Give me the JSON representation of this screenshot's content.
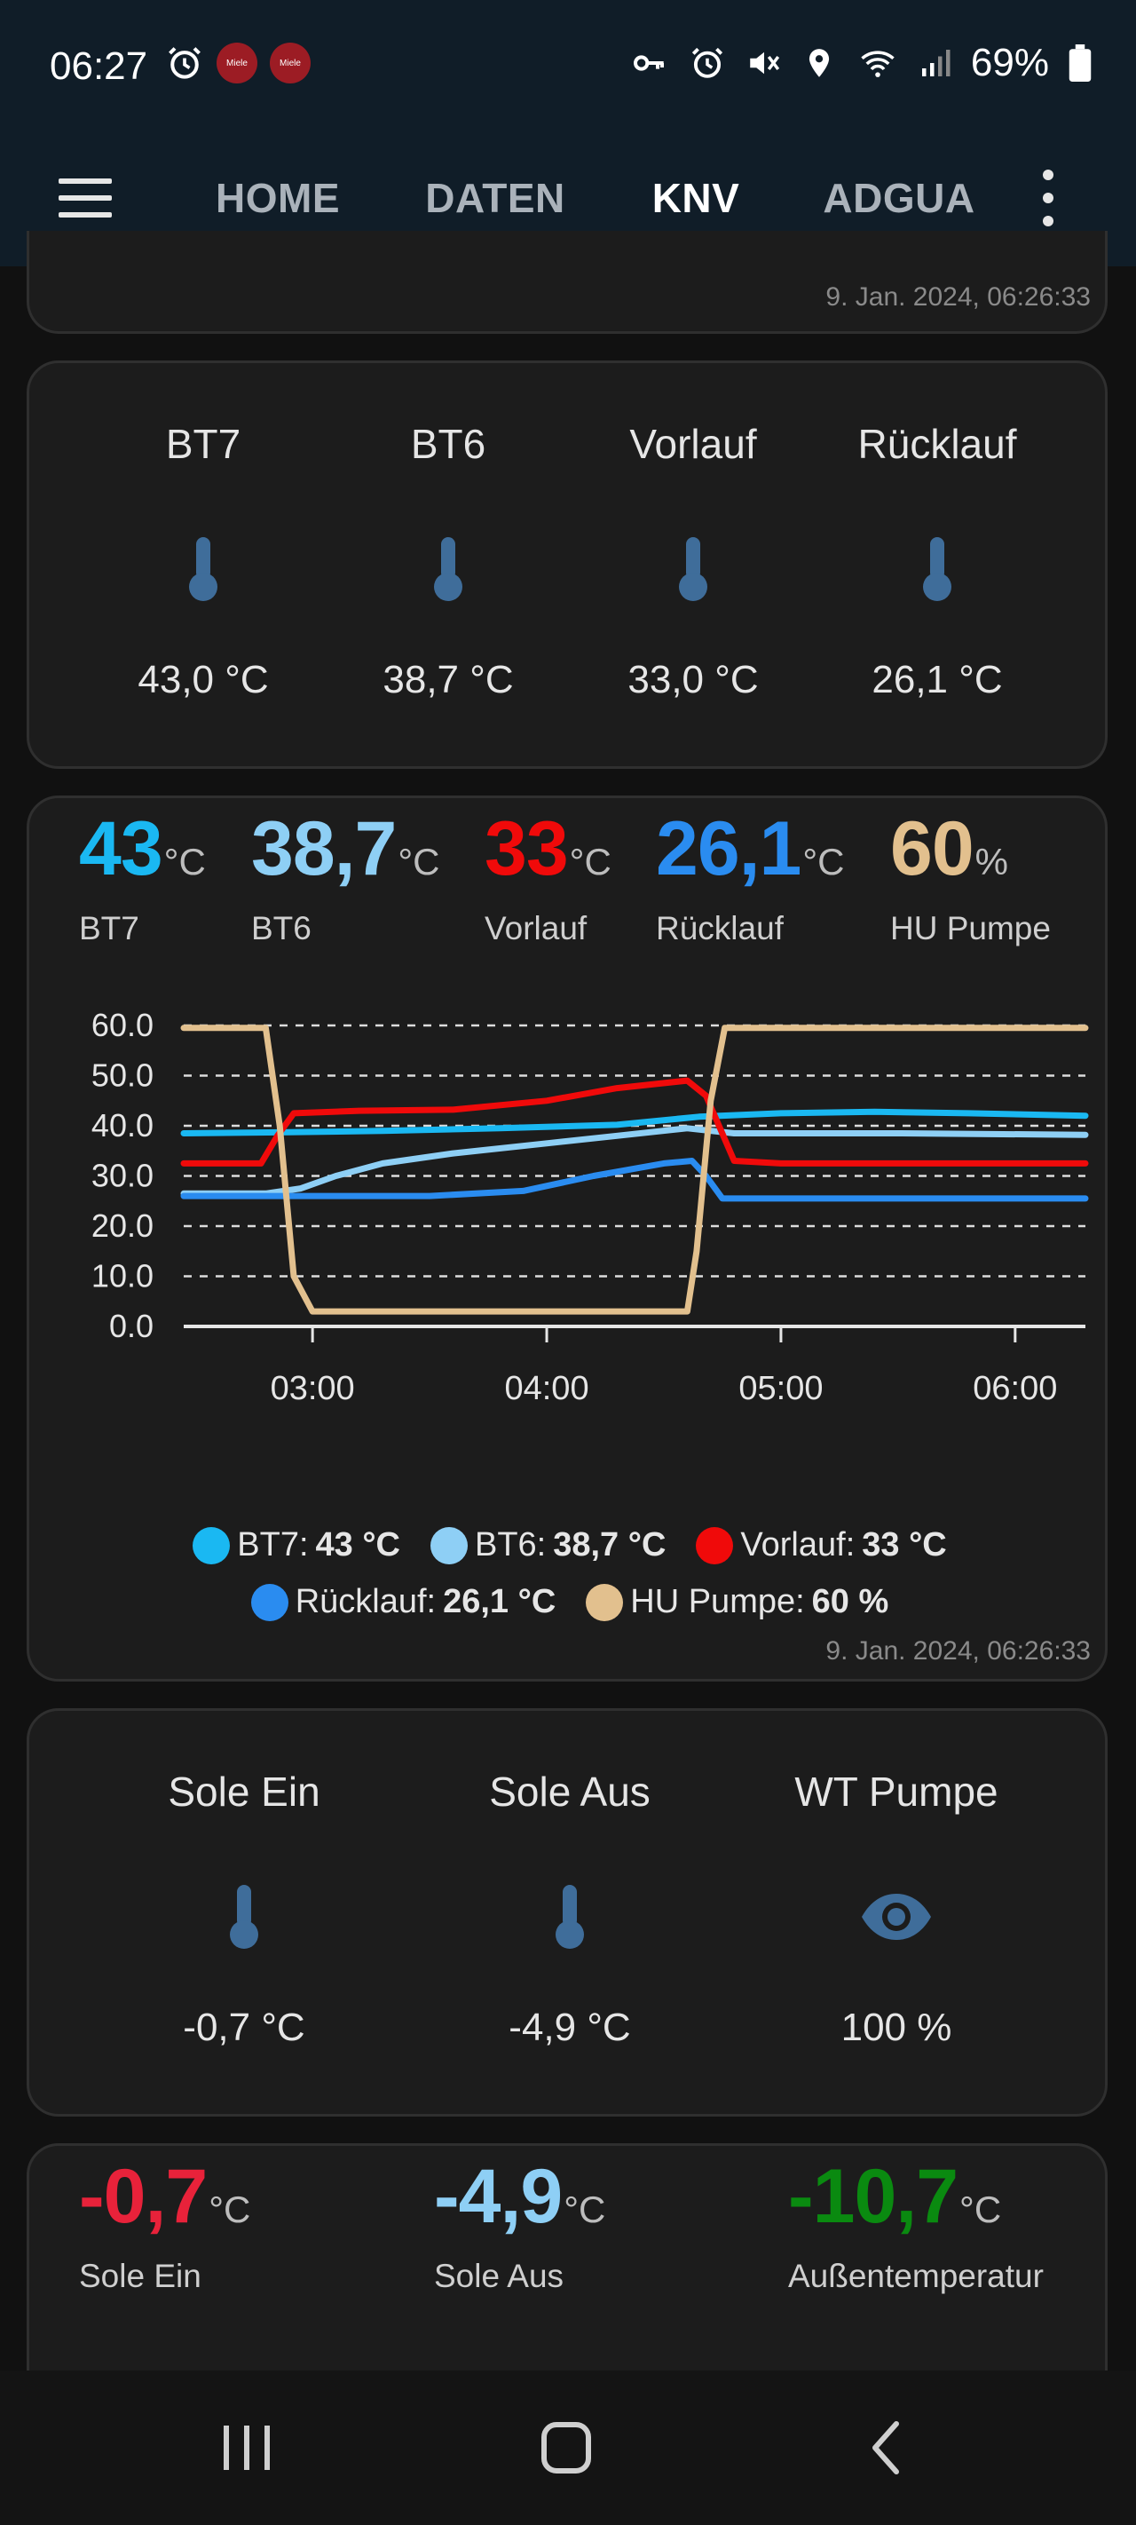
{
  "status_bar": {
    "time": "06:27",
    "battery_percent": "69%",
    "app_badge_text": "Miele",
    "icons": [
      "alarm-icon",
      "miele-app-icon",
      "miele-app-icon",
      "key-icon",
      "alarm-icon",
      "mute-icon",
      "location-icon",
      "wifi-icon",
      "signal-icon",
      "battery-icon"
    ]
  },
  "toolbar": {
    "tabs": [
      {
        "label": "HOME",
        "active": false
      },
      {
        "label": "DATEN",
        "active": false
      },
      {
        "label": "KNV",
        "active": true
      },
      {
        "label": "ADGUA",
        "active": false
      }
    ]
  },
  "top_card": {
    "timestamp": "9. Jan. 2024, 06:26:33"
  },
  "temp_tiles_1": [
    {
      "label": "BT7",
      "icon": "thermometer-icon",
      "value": "43,0 °C"
    },
    {
      "label": "BT6",
      "icon": "thermometer-icon",
      "value": "38,7 °C"
    },
    {
      "label": "Vorlauf",
      "icon": "thermometer-icon",
      "value": "33,0 °C"
    },
    {
      "label": "Rücklauf",
      "icon": "thermometer-icon",
      "value": "26,1 °C"
    }
  ],
  "history_card": {
    "headers": [
      {
        "value": "43",
        "unit": "°C",
        "label": "BT7",
        "color": "#1ab8f2"
      },
      {
        "value": "38,7",
        "unit": "°C",
        "label": "BT6",
        "color": "#8ecff5"
      },
      {
        "value": "33",
        "unit": "°C",
        "label": "Vorlauf",
        "color": "#f00a0a"
      },
      {
        "value": "26,1",
        "unit": "°C",
        "label": "Rücklauf",
        "color": "#2a8cf0"
      },
      {
        "value": "60",
        "unit": "%",
        "label": "HU Pumpe",
        "color": "#e2c08e"
      }
    ],
    "legend": [
      {
        "name": "BT7:",
        "value": "43 °C",
        "color": "#1ab8f2"
      },
      {
        "name": "BT6:",
        "value": "38,7 °C",
        "color": "#8ecff5"
      },
      {
        "name": "Vorlauf:",
        "value": "33 °C",
        "color": "#f00a0a"
      },
      {
        "name": "Rücklauf:",
        "value": "26,1 °C",
        "color": "#2a8cf0"
      },
      {
        "name": "HU Pumpe:",
        "value": "60 %",
        "color": "#e2c08e"
      }
    ],
    "timestamp": "9. Jan. 2024, 06:26:33"
  },
  "chart_data": {
    "type": "line",
    "y_tick_labels": [
      "60.0",
      "50.0",
      "40.0",
      "30.0",
      "20.0",
      "10.0",
      "0.0"
    ],
    "x_tick_labels": [
      "03:00",
      "04:00",
      "05:00",
      "06:00"
    ],
    "x_ticks_hours": [
      3,
      4,
      5,
      6
    ],
    "xlim_hours": [
      2.45,
      6.3
    ],
    "ylim": [
      0,
      60
    ],
    "grid": true,
    "legend_position": "bottom",
    "series": [
      {
        "name": "BT7",
        "color": "#1ab8f2",
        "x": [
          2.45,
          2.9,
          3.3,
          3.8,
          4.3,
          4.65,
          5.0,
          5.4,
          5.8,
          6.3
        ],
        "y": [
          38.5,
          38.7,
          39.0,
          39.5,
          40.2,
          41.8,
          42.5,
          42.8,
          42.5,
          42.0
        ]
      },
      {
        "name": "BT6",
        "color": "#8ecff5",
        "x": [
          2.45,
          2.8,
          2.95,
          3.1,
          3.3,
          3.6,
          4.0,
          4.3,
          4.6,
          4.8,
          5.0,
          5.5,
          6.3
        ],
        "y": [
          26.5,
          26.5,
          27.5,
          30.0,
          32.5,
          34.5,
          36.5,
          38.0,
          39.5,
          38.5,
          38.5,
          38.5,
          38.2
        ]
      },
      {
        "name": "Vorlauf",
        "color": "#f00a0a",
        "x": [
          2.45,
          2.78,
          2.85,
          2.92,
          3.2,
          3.6,
          4.0,
          4.3,
          4.6,
          4.68,
          4.8,
          5.0,
          6.3
        ],
        "y": [
          32.5,
          32.5,
          38.0,
          42.5,
          43.0,
          43.2,
          45.0,
          47.5,
          49.0,
          46.0,
          33.0,
          32.5,
          32.5
        ]
      },
      {
        "name": "Rücklauf",
        "color": "#2a8cf0",
        "x": [
          2.45,
          3.0,
          3.5,
          3.9,
          4.2,
          4.5,
          4.62,
          4.68,
          4.75,
          5.0,
          6.3
        ],
        "y": [
          26.0,
          26.0,
          26.0,
          27.0,
          30.0,
          32.5,
          33.0,
          30.0,
          25.5,
          25.5,
          25.5
        ]
      },
      {
        "name": "HU Pumpe",
        "color": "#e2c08e",
        "x": [
          2.45,
          2.8,
          2.86,
          2.92,
          3.0,
          4.6,
          4.64,
          4.7,
          4.76,
          6.3
        ],
        "y": [
          59.5,
          59.5,
          40.0,
          10.0,
          3.0,
          3.0,
          15.0,
          45.0,
          59.5,
          59.5
        ]
      }
    ]
  },
  "temp_tiles_2": [
    {
      "label": "Sole Ein",
      "icon": "thermometer-icon",
      "value": "-0,7 °C"
    },
    {
      "label": "Sole Aus",
      "icon": "thermometer-icon",
      "value": "-4,9 °C"
    },
    {
      "label": "WT Pumpe",
      "icon": "eye-icon",
      "value": "100 %"
    }
  ],
  "bottom_card": {
    "headers": [
      {
        "value": "-0,7",
        "unit": "°C",
        "label": "Sole Ein",
        "color": "#e8223a"
      },
      {
        "value": "-4,9",
        "unit": "°C",
        "label": "Sole Aus",
        "color": "#8ecff5"
      },
      {
        "value": "-10,7",
        "unit": "°C",
        "label": "Außentemperatur",
        "color": "#0a8a10"
      }
    ]
  },
  "nav_bar": {
    "icons": [
      "recent-apps-icon",
      "home-icon",
      "back-icon"
    ]
  },
  "colors": {
    "icon_blue": "#3f6d9a",
    "card_bg": "#1c1c1c",
    "toolbar_bg": "#101d28"
  }
}
